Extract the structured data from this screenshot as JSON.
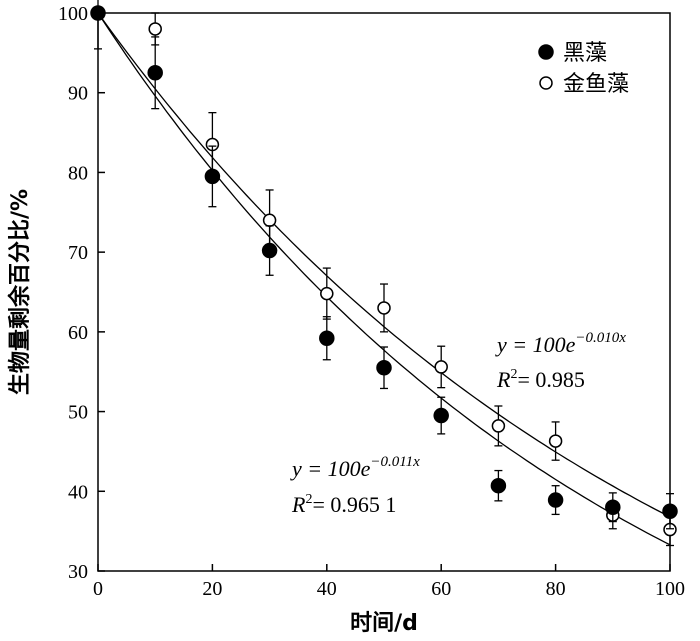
{
  "chart_data": {
    "type": "scatter",
    "title": "",
    "xlabel": "时间/d",
    "ylabel": "生物量剩余百分比/%",
    "xlim": [
      0,
      100
    ],
    "ylim": [
      30,
      100
    ],
    "xticks": [
      0,
      20,
      40,
      60,
      80,
      100
    ],
    "yticks": [
      30,
      40,
      50,
      60,
      70,
      80,
      90,
      100
    ],
    "legend_position": "top-right",
    "grid": false,
    "series": [
      {
        "name": "黑藻",
        "marker": "filled-circle",
        "x": [
          0,
          10,
          20,
          30,
          40,
          50,
          60,
          70,
          80,
          90,
          100
        ],
        "y": [
          100,
          92.5,
          79.5,
          70.2,
          59.2,
          55.5,
          49.5,
          40.7,
          38.9,
          38.0,
          37.5
        ],
        "err": [
          0,
          4.5,
          3.8,
          3.1,
          2.7,
          2.6,
          2.3,
          1.9,
          1.8,
          1.8,
          2.2
        ],
        "fit": {
          "k": 0.011,
          "a": 100,
          "equation": "y = 100e",
          "exponent": "−0.011x",
          "r2": "R",
          "r2_value": "= 0.965 1"
        }
      },
      {
        "name": "金鱼藻",
        "marker": "open-circle",
        "x": [
          0,
          10,
          20,
          30,
          40,
          50,
          60,
          70,
          80,
          90,
          100
        ],
        "y": [
          100,
          98,
          83.5,
          74,
          64.8,
          63,
          55.6,
          48.2,
          46.3,
          37,
          35.2
        ],
        "err": [
          4.5,
          2.0,
          4.0,
          3.8,
          3.2,
          3.0,
          2.6,
          2.5,
          2.4,
          1.7,
          2.0
        ],
        "fit": {
          "k": 0.01,
          "a": 100,
          "equation": "y = 100e",
          "exponent": "−0.010x",
          "r2": "R",
          "r2_value": "= 0.985"
        }
      }
    ]
  }
}
